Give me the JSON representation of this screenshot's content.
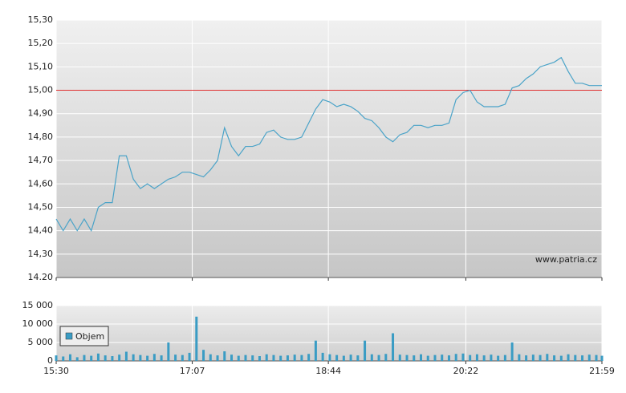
{
  "chart_data": [
    {
      "type": "line",
      "color": "#4aa3c8",
      "annotation": "www.patria.cz",
      "reference_line": {
        "value": 15.0,
        "color": "#e03030"
      },
      "ylim": [
        14.2,
        15.3
      ],
      "yticks": [
        {
          "value": 14.2,
          "label": "14.20"
        },
        {
          "value": 14.3,
          "label": "14,30"
        },
        {
          "value": 14.4,
          "label": "14,40"
        },
        {
          "value": 14.5,
          "label": "14,50"
        },
        {
          "value": 14.6,
          "label": "14,60"
        },
        {
          "value": 14.7,
          "label": "14,70"
        },
        {
          "value": 14.8,
          "label": "14,80"
        },
        {
          "value": 14.9,
          "label": "14,90"
        },
        {
          "value": 15.0,
          "label": "15,00"
        },
        {
          "value": 15.1,
          "label": "15,10"
        },
        {
          "value": 15.2,
          "label": "15,20"
        },
        {
          "value": 15.3,
          "label": "15,30"
        }
      ],
      "x": [
        "15:30",
        "15:35",
        "15:40",
        "15:45",
        "15:50",
        "15:55",
        "16:00",
        "16:05",
        "16:10",
        "16:15",
        "16:20",
        "16:25",
        "16:30",
        "16:35",
        "16:40",
        "16:45",
        "16:50",
        "16:55",
        "17:00",
        "17:05",
        "17:10",
        "17:15",
        "17:20",
        "17:25",
        "17:30",
        "17:35",
        "17:40",
        "17:45",
        "17:50",
        "17:55",
        "18:00",
        "18:05",
        "18:10",
        "18:15",
        "18:20",
        "18:25",
        "18:30",
        "18:35",
        "18:40",
        "18:45",
        "18:50",
        "18:55",
        "19:00",
        "19:05",
        "19:10",
        "19:15",
        "19:20",
        "19:25",
        "19:30",
        "19:35",
        "19:40",
        "19:45",
        "19:50",
        "19:55",
        "20:00",
        "20:05",
        "20:10",
        "20:15",
        "20:20",
        "20:25",
        "20:30",
        "20:35",
        "20:40",
        "20:45",
        "20:50",
        "20:55",
        "21:00",
        "21:05",
        "21:10",
        "21:15",
        "21:20",
        "21:25",
        "21:30",
        "21:35",
        "21:40",
        "21:45",
        "21:50",
        "21:55",
        "21:59"
      ],
      "values": [
        14.45,
        14.4,
        14.45,
        14.4,
        14.45,
        14.4,
        14.5,
        14.52,
        14.52,
        14.72,
        14.72,
        14.62,
        14.58,
        14.6,
        14.58,
        14.6,
        14.62,
        14.63,
        14.65,
        14.65,
        14.64,
        14.63,
        14.66,
        14.7,
        14.84,
        14.76,
        14.72,
        14.76,
        14.76,
        14.77,
        14.82,
        14.83,
        14.8,
        14.79,
        14.79,
        14.8,
        14.86,
        14.92,
        14.96,
        14.95,
        14.93,
        14.94,
        14.93,
        14.91,
        14.88,
        14.87,
        14.84,
        14.8,
        14.78,
        14.81,
        14.82,
        14.85,
        14.85,
        14.84,
        14.85,
        14.85,
        14.86,
        14.96,
        14.99,
        15.0,
        14.95,
        14.93,
        14.93,
        14.93,
        14.94,
        15.01,
        15.02,
        15.05,
        15.07,
        15.1,
        15.11,
        15.12,
        15.14,
        15.08,
        15.03,
        15.03,
        15.02,
        15.02,
        15.02
      ]
    },
    {
      "type": "bar",
      "xlim": [
        "15:30",
        "21:59"
      ],
      "xticks": [
        "15:30",
        "17:07",
        "18:44",
        "20:22",
        "21:59"
      ],
      "ylim": [
        0,
        15000
      ],
      "yticks": [
        0,
        {
          "value": 5000,
          "label": "5 000"
        },
        {
          "value": 10000,
          "label": "10 000"
        },
        {
          "value": 15000,
          "label": "15 000"
        }
      ],
      "series": [
        {
          "name": "Objem",
          "color": "#3a9cc4",
          "x": [
            "15:30",
            "15:35",
            "15:40",
            "15:45",
            "15:50",
            "15:55",
            "16:00",
            "16:05",
            "16:10",
            "16:15",
            "16:20",
            "16:25",
            "16:30",
            "16:35",
            "16:40",
            "16:45",
            "16:50",
            "16:55",
            "17:00",
            "17:05",
            "17:10",
            "17:15",
            "17:20",
            "17:25",
            "17:30",
            "17:35",
            "17:40",
            "17:45",
            "17:50",
            "17:55",
            "18:00",
            "18:05",
            "18:10",
            "18:15",
            "18:20",
            "18:25",
            "18:30",
            "18:35",
            "18:40",
            "18:45",
            "18:50",
            "18:55",
            "19:00",
            "19:05",
            "19:10",
            "19:15",
            "19:20",
            "19:25",
            "19:30",
            "19:35",
            "19:40",
            "19:45",
            "19:50",
            "19:55",
            "20:00",
            "20:05",
            "20:10",
            "20:15",
            "20:20",
            "20:25",
            "20:30",
            "20:35",
            "20:40",
            "20:45",
            "20:50",
            "20:55",
            "21:00",
            "21:05",
            "21:10",
            "21:15",
            "21:20",
            "21:25",
            "21:30",
            "21:35",
            "21:40",
            "21:45",
            "21:50",
            "21:55",
            "21:59"
          ],
          "values": [
            1500,
            1200,
            1800,
            1000,
            1600,
            1400,
            2000,
            1500,
            1300,
            1700,
            2500,
            1800,
            1600,
            1400,
            1900,
            1500,
            5000,
            1700,
            1600,
            2200,
            12000,
            3000,
            1800,
            1500,
            2600,
            1700,
            1400,
            1600,
            1500,
            1300,
            1800,
            1600,
            1400,
            1500,
            1700,
            1600,
            1900,
            5500,
            2200,
            1800,
            1600,
            1400,
            1700,
            1500,
            5500,
            1800,
            1600,
            1900,
            7500,
            1700,
            1600,
            1500,
            1800,
            1400,
            1600,
            1700,
            1500,
            1900,
            2000,
            1600,
            1800,
            1500,
            1700,
            1400,
            1600,
            5000,
            1800,
            1500,
            1700,
            1600,
            1900,
            1500,
            1400,
            1800,
            1600,
            1500,
            1700,
            1600,
            1400
          ]
        }
      ]
    }
  ]
}
